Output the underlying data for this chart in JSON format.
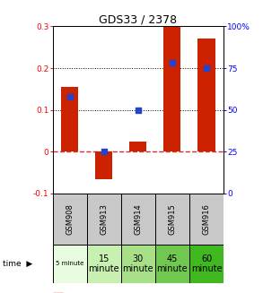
{
  "title": "GDS33 / 2378",
  "samples": [
    "GSM908",
    "GSM913",
    "GSM914",
    "GSM915",
    "GSM916"
  ],
  "time_labels": [
    "5 minute",
    "15\nminute",
    "30\nminute",
    "45\nminute",
    "60\nminute"
  ],
  "time_colors": [
    "#e8fce0",
    "#c8f0b0",
    "#a8e088",
    "#70c850",
    "#40b820"
  ],
  "log_ratios": [
    0.155,
    -0.065,
    0.025,
    0.3,
    0.27
  ],
  "percentile_ranks_pct": [
    58,
    25,
    50,
    78,
    75
  ],
  "bar_color": "#cc2200",
  "dot_color": "#2244cc",
  "ylim_left": [
    -0.1,
    0.3
  ],
  "ylim_right": [
    0,
    100
  ],
  "hline_0_color": "#cc3333",
  "background_color": "#ffffff",
  "gsm_bg": "#c8c8c8",
  "title_fontsize": 9,
  "tick_fontsize": 6.5,
  "sample_fontsize": 6,
  "time_fontsize_small": 5,
  "time_fontsize": 7
}
